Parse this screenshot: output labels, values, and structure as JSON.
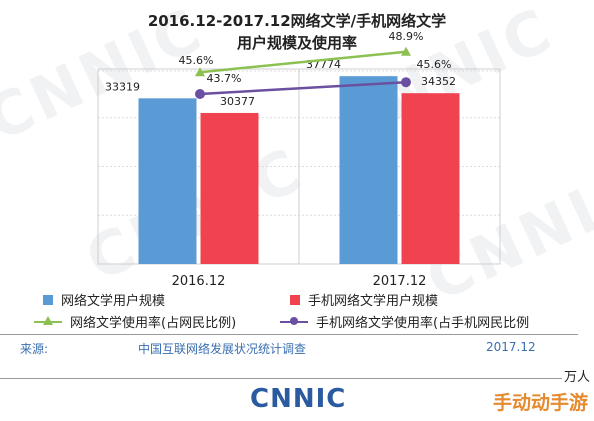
{
  "title_line1": "2016.12-2017.12网络文学/手机网络文学",
  "title_line2": "用户规模及使用率",
  "chart_data": {
    "type": "bar",
    "categories": [
      "2016.12",
      "2017.12"
    ],
    "series": [
      {
        "name": "网络文学用户规模",
        "values": [
          33319,
          37774
        ],
        "color": "#5b9bd5"
      },
      {
        "name": "手机网络文学用户规模",
        "values": [
          30377,
          34352
        ],
        "color": "#f0434f"
      }
    ],
    "lines": [
      {
        "name": "网络文学使用率(占网民比例)",
        "values": [
          45.6,
          48.9
        ],
        "labels": [
          "45.6%",
          "48.9%"
        ],
        "color": "#8cc152",
        "marker": "triangle"
      },
      {
        "name": "手机网络文学使用率(占手机网民比例",
        "values": [
          43.7,
          45.6
        ],
        "labels": [
          "43.7%",
          "45.6%"
        ],
        "color": "#6b4fa0",
        "marker": "circle"
      }
    ],
    "ylim": [
      0,
      40000
    ],
    "grid": true
  },
  "legend": {
    "bar1": "网络文学用户规模",
    "bar2": "手机网络文学用户规模",
    "line1": "网络文学使用率(占网民比例)",
    "line2": "手机网络文学使用率(占手机网民比例"
  },
  "footer": {
    "source_label": "来源:",
    "source_name": "中国互联网络发展状况统计调查",
    "date": "2017.12",
    "unit": "万人"
  },
  "logo_text": "CNNIC",
  "watermark_text": "CNNIC",
  "corner_text": "手动动手游",
  "colors": {
    "bar1": "#5b9bd5",
    "bar2": "#f0434f",
    "line1": "#8cc152",
    "line2": "#6b4fa0"
  }
}
